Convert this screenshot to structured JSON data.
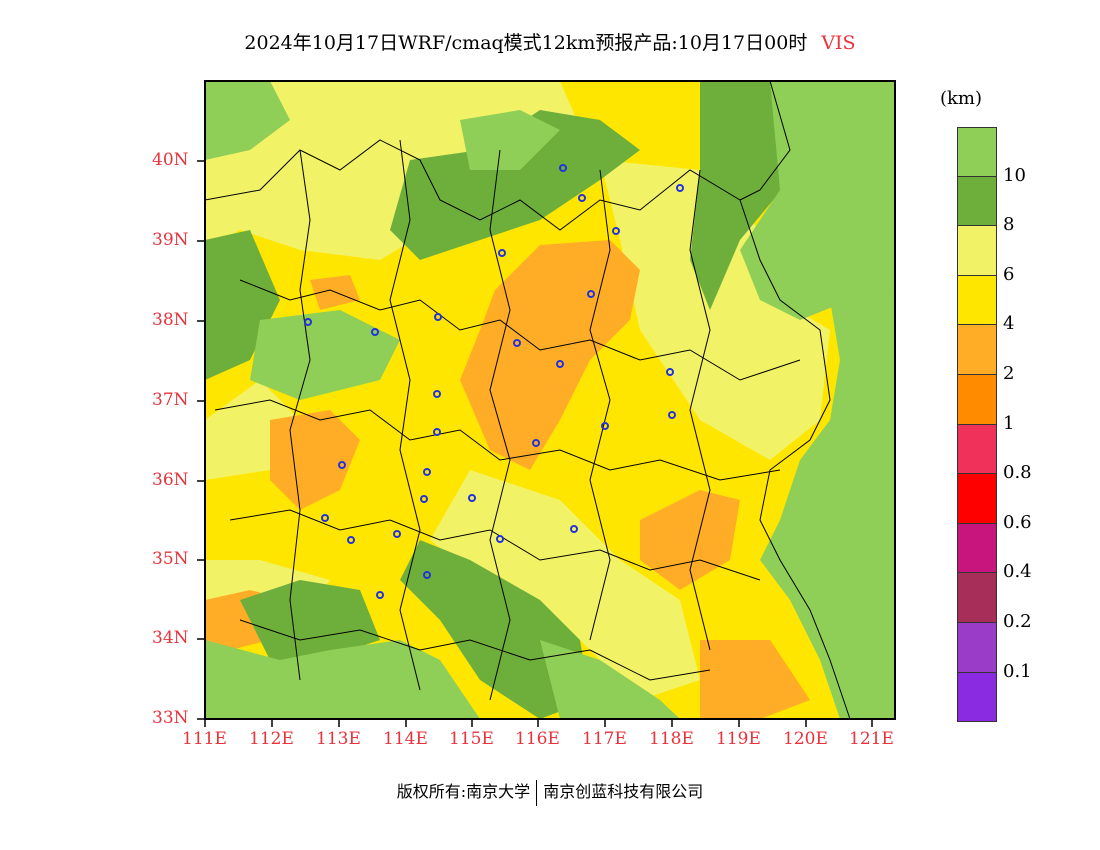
{
  "title": {
    "main": "2024年10月17日WRF/cmaq模式12km预报产品:10月17日00时",
    "variable": "VIS"
  },
  "colors": {
    "axis_label": "#e8323c",
    "water": "#8fce57",
    "province_border": "#000000",
    "station": "#2233dd"
  },
  "legend": {
    "unit": "(km)",
    "levels": [
      {
        "label": "10",
        "color": "#8fce57"
      },
      {
        "label": "8",
        "color": "#6eaf3c"
      },
      {
        "label": "6",
        "color": "#f2f266"
      },
      {
        "label": "4",
        "color": "#ffe600"
      },
      {
        "label": "2",
        "color": "#ffad26"
      },
      {
        "label": "1",
        "color": "#ff8c00"
      },
      {
        "label": "0.8",
        "color": "#f0325a"
      },
      {
        "label": "0.6",
        "color": "#ff0000"
      },
      {
        "label": "0.4",
        "color": "#c8147d"
      },
      {
        "label": "0.2",
        "color": "#a82e5a"
      },
      {
        "label": "0.1",
        "color": "#9b3cc8"
      },
      {
        "label": "",
        "color": "#8a2be2"
      }
    ]
  },
  "axes": {
    "lat_labels": [
      "40N",
      "39N",
      "38N",
      "37N",
      "36N",
      "35N",
      "34N",
      "33N"
    ],
    "lon_labels": [
      "111E",
      "112E",
      "113E",
      "114E",
      "115E",
      "116E",
      "117E",
      "118E",
      "119E",
      "120E",
      "121E"
    ]
  },
  "footer": {
    "left": "版权所有:南京大学",
    "right": "南京创蓝科技有限公司"
  }
}
